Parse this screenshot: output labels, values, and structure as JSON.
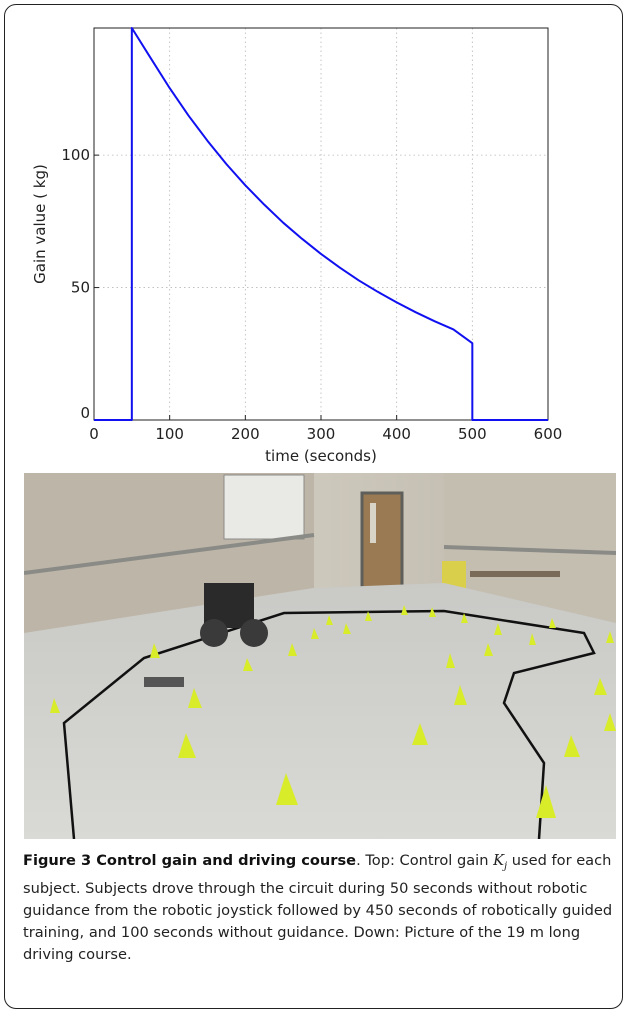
{
  "chart_data": {
    "type": "line",
    "title": "",
    "xlabel": "time (seconds)",
    "ylabel": "Gain value ( kg)",
    "xlim": [
      0,
      600
    ],
    "ylim": [
      0,
      148
    ],
    "xticks": [
      0,
      100,
      200,
      300,
      400,
      500,
      600
    ],
    "yticks": [
      0,
      50,
      100
    ],
    "grid": true,
    "series": [
      {
        "color": "#1010f0",
        "x": [
          0,
          50,
          50,
          75,
          100,
          125,
          150,
          175,
          200,
          225,
          250,
          275,
          300,
          325,
          350,
          375,
          400,
          425,
          450,
          475,
          500,
          500,
          600
        ],
        "y": [
          0,
          0,
          149,
          136.6,
          125.3,
          114.9,
          105.4,
          96.6,
          88.6,
          81.3,
          74.5,
          68.4,
          62.7,
          57.5,
          52.7,
          48.4,
          44.4,
          40.7,
          37.3,
          34.2,
          29,
          0,
          0
        ]
      }
    ]
  },
  "figure": {
    "caption_title": "Figure 3 Control gain and driving course",
    "caption_after_title": ". Top: Control gain ",
    "gain_symbol": "K",
    "gain_subscript": "j",
    "caption_body": " used for each subject. Subjects drove through the circuit during 50 seconds without robotic guidance from the robotic joystick followed by 450 seconds of robotically guided training, and 100 seconds without guidance. Down: Picture of the 19 m long driving course."
  }
}
